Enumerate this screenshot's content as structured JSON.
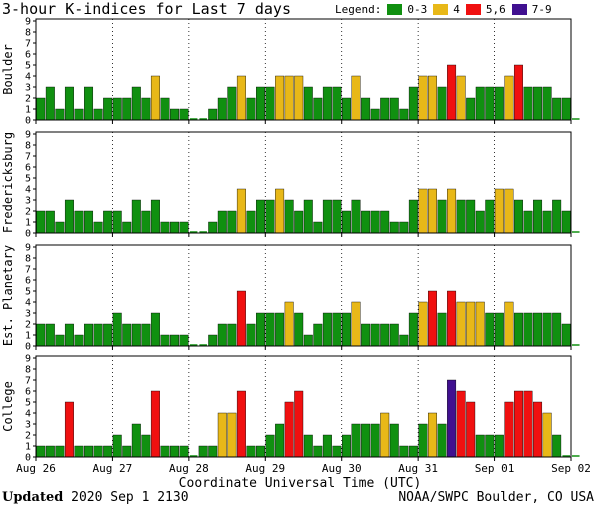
{
  "title": "3-hour K-indices for Last 7 days",
  "legend": {
    "label": "Legend:",
    "items": [
      {
        "name": "0-3",
        "color": "#109010"
      },
      {
        "name": "4",
        "color": "#e8b818"
      },
      {
        "name": "5,6",
        "color": "#f01010"
      },
      {
        "name": "7-9",
        "color": "#401090"
      }
    ]
  },
  "x_axis_title": "Coordinate Universal Time (UTC)",
  "footer": {
    "updated_label": "Updated",
    "updated_value": "2020 Sep  1 2130",
    "credit": "NOAA/SWPC Boulder, CO USA"
  },
  "chart_data": [
    {
      "type": "bar",
      "ylabel": "Boulder",
      "ylim": [
        0,
        9
      ],
      "yticks": [
        0,
        1,
        2,
        3,
        4,
        5,
        6,
        7,
        8,
        9
      ],
      "xticklabels": [
        "Aug 26",
        "Aug 27",
        "Aug 28",
        "Aug 29",
        "Aug 30",
        "Aug 31",
        "Sep 01",
        "Sep 02"
      ],
      "values": [
        2,
        3,
        1,
        3,
        1,
        3,
        1,
        2,
        2,
        2,
        3,
        2,
        4,
        2,
        1,
        1,
        0,
        0,
        1,
        2,
        3,
        4,
        2,
        3,
        3,
        4,
        4,
        4,
        3,
        2,
        3,
        3,
        2,
        4,
        2,
        1,
        2,
        2,
        1,
        3,
        4,
        4,
        3,
        5,
        4,
        2,
        3,
        3,
        3,
        4,
        5,
        3,
        3,
        3,
        2,
        2,
        0
      ]
    },
    {
      "type": "bar",
      "ylabel": "Fredericksburg",
      "ylim": [
        0,
        9
      ],
      "yticks": [
        0,
        1,
        2,
        3,
        4,
        5,
        6,
        7,
        8,
        9
      ],
      "xticklabels": [
        "Aug 26",
        "Aug 27",
        "Aug 28",
        "Aug 29",
        "Aug 30",
        "Aug 31",
        "Sep 01",
        "Sep 02"
      ],
      "values": [
        2,
        2,
        1,
        3,
        2,
        2,
        1,
        2,
        2,
        1,
        3,
        2,
        3,
        1,
        1,
        1,
        0,
        0,
        1,
        2,
        2,
        4,
        2,
        3,
        3,
        4,
        3,
        2,
        3,
        1,
        3,
        3,
        2,
        3,
        2,
        2,
        2,
        1,
        1,
        3,
        4,
        4,
        3,
        4,
        3,
        3,
        2,
        3,
        4,
        4,
        3,
        2,
        3,
        2,
        3,
        2,
        0
      ]
    },
    {
      "type": "bar",
      "ylabel": "Est. Planetary",
      "ylim": [
        0,
        9
      ],
      "yticks": [
        0,
        1,
        2,
        3,
        4,
        5,
        6,
        7,
        8,
        9
      ],
      "xticklabels": [
        "Aug 26",
        "Aug 27",
        "Aug 28",
        "Aug 29",
        "Aug 30",
        "Aug 31",
        "Sep 01",
        "Sep 02"
      ],
      "values": [
        2,
        2,
        1,
        2,
        1,
        2,
        2,
        2,
        3,
        2,
        2,
        2,
        3,
        1,
        1,
        1,
        0,
        0,
        1,
        2,
        2,
        5,
        2,
        3,
        3,
        3,
        4,
        3,
        1,
        2,
        3,
        3,
        3,
        4,
        2,
        2,
        2,
        2,
        1,
        3,
        4,
        5,
        3,
        5,
        4,
        4,
        4,
        3,
        3,
        4,
        3,
        3,
        3,
        3,
        3,
        2,
        0
      ]
    },
    {
      "type": "bar",
      "ylabel": "College",
      "ylim": [
        0,
        9
      ],
      "yticks": [
        0,
        1,
        2,
        3,
        4,
        5,
        6,
        7,
        8,
        9
      ],
      "xticklabels": [
        "Aug 26",
        "Aug 27",
        "Aug 28",
        "Aug 29",
        "Aug 30",
        "Aug 31",
        "Sep 01",
        "Sep 02"
      ],
      "values": [
        1,
        1,
        1,
        5,
        1,
        1,
        1,
        1,
        2,
        1,
        3,
        2,
        6,
        1,
        1,
        1,
        0,
        1,
        1,
        4,
        4,
        6,
        1,
        1,
        2,
        3,
        5,
        6,
        2,
        1,
        2,
        1,
        2,
        3,
        3,
        3,
        4,
        3,
        1,
        1,
        3,
        4,
        3,
        7,
        6,
        5,
        2,
        2,
        2,
        5,
        6,
        6,
        5,
        4,
        2,
        0,
        0
      ]
    }
  ]
}
